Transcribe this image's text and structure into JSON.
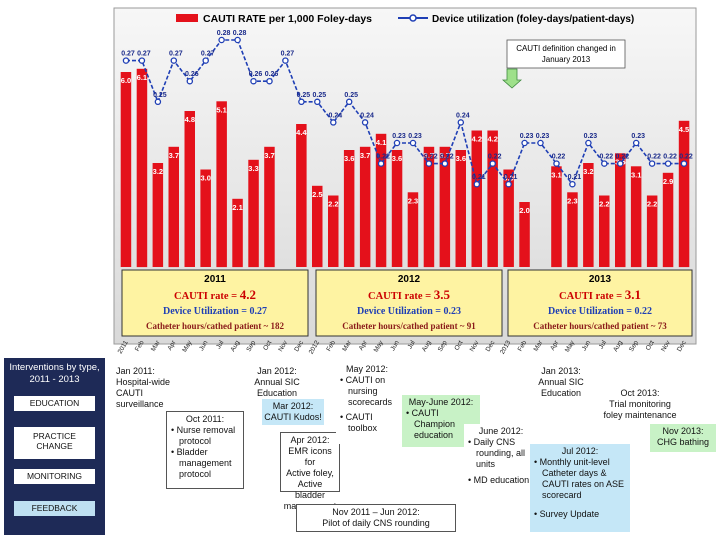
{
  "chart_data": {
    "type": "bar",
    "title_bar": "CAUTI RATE per 1,000 Foley-days",
    "title_line": "Device utilization (foley-days/patient-days)",
    "categories": [
      "2011",
      "Feb",
      "Mar",
      "Apr",
      "May",
      "Jun",
      "Jul",
      "Aug",
      "Sep",
      "Oct",
      "Nov",
      "Dec",
      "2012",
      "Feb",
      "Mar",
      "Apr",
      "May",
      "Jun",
      "Jul",
      "Aug",
      "Sep",
      "Oct",
      "Nov",
      "Dec",
      "2013",
      "Feb",
      "Mar",
      "Apr",
      "May",
      "Jun",
      "Jul",
      "Aug",
      "Sep",
      "Oct",
      "Nov",
      "Dec"
    ],
    "series": [
      {
        "name": "CAUTI RATE per 1,000 Foley-days",
        "type": "bar",
        "color": "#e4111b",
        "values": [
          6.0,
          6.1,
          3.2,
          3.7,
          4.8,
          3.0,
          5.1,
          2.1,
          3.3,
          3.7,
          null,
          4.4,
          2.5,
          2.2,
          3.6,
          3.7,
          4.1,
          3.6,
          2.3,
          3.7,
          3.7,
          3.6,
          4.2,
          4.2,
          3.0,
          2.0,
          null,
          3.1,
          2.3,
          3.2,
          2.2,
          3.5,
          3.1,
          2.2,
          2.9,
          4.5
        ],
        "labels": [
          "6.0",
          "6.1",
          "3.2",
          "3.7",
          "4.8",
          "3.0",
          "5.1",
          "2.1",
          "3.3",
          "3.7",
          "",
          "4.4",
          "2.5",
          "2.2",
          "3.6",
          "3.7",
          "4.1",
          "3.6",
          "2.3",
          "3.7",
          "3.7",
          "3.6",
          "4.2",
          "4.2",
          "3.0",
          "2.0",
          "",
          "3.1",
          "2.3",
          "3.2",
          "2.2",
          "3.5",
          "3.1",
          "2.2",
          "2.9",
          "4.5"
        ]
      },
      {
        "name": "Device utilization (foley-days/patient-days)",
        "type": "line",
        "color": "#1f3fb5",
        "values": [
          0.27,
          0.27,
          0.25,
          0.27,
          0.26,
          0.27,
          0.28,
          0.28,
          0.26,
          0.26,
          0.27,
          0.25,
          0.25,
          0.24,
          0.25,
          0.24,
          0.22,
          0.23,
          0.23,
          0.22,
          0.22,
          0.24,
          0.21,
          0.22,
          0.21,
          0.23,
          0.23,
          0.22,
          0.21,
          0.23,
          0.22,
          0.22,
          0.23,
          0.22,
          0.22,
          0.22
        ],
        "labels": [
          "0.27",
          "0.27",
          "0.25",
          "0.27",
          "0.26",
          "0.27",
          "0.28",
          "0.28",
          "0.26",
          "0.26",
          "0.27",
          "0.25",
          "0.25",
          "0.24",
          "0.25",
          "0.24",
          "0.22",
          "0.23",
          "0.23",
          "0.22",
          "0.22",
          "0.24",
          "0.21",
          "0.22",
          "0.21",
          "0.23",
          "0.23",
          "0.22",
          "0.21",
          "0.23",
          "0.22",
          "0.22",
          "0.23",
          "0.22",
          "0.22",
          "0.22"
        ]
      }
    ],
    "annotation": "CAUTI definition changed in January 2013",
    "summaries": [
      {
        "year": "2011",
        "rate_label": "CAUTI rate = ",
        "rate": "4.2",
        "util": "Device Utilization = 0.27",
        "ratio": "Catheter hours/cathed patient ~ 182"
      },
      {
        "year": "2012",
        "rate_label": "CAUTI rate = ",
        "rate": "3.5",
        "util": "Device Utilization = 0.23",
        "ratio": "Catheter hours/cathed patient ~ 91"
      },
      {
        "year": "2013",
        "rate_label": "CAUTI rate = ",
        "rate": "3.1",
        "util": "Device Utilization = 0.22",
        "ratio": "Catheter hours/cathed patient ~ 73"
      }
    ]
  },
  "interventions": {
    "title": "Interventions by type, 2011 - 2013",
    "types": [
      {
        "name": "EDUCATION",
        "color": "#ffffff"
      },
      {
        "name": "PRACTICE CHANGE",
        "color": "#ffffff"
      },
      {
        "name": "MONITORING",
        "color": "#ffffff"
      },
      {
        "name": "FEEDBACK",
        "color": "#bfe0f2"
      }
    ]
  },
  "timeline": {
    "jan2011": [
      "Jan 2011:",
      "Hospital-wide",
      "CAUTI",
      "surveillance"
    ],
    "oct2011": {
      "head": "Oct 2011:",
      "items": [
        "Nurse removal protocol",
        "Bladder management protocol"
      ]
    },
    "jan2012": [
      "Jan 2012:",
      "Annual SIC",
      "Education"
    ],
    "mar2012": [
      "Mar 2012:",
      "CAUTI Kudos!"
    ],
    "apr2012": [
      "Apr 2012:",
      "EMR icons for",
      "Active foley,",
      "Active bladder",
      "management"
    ],
    "may2012": {
      "head": "May 2012:",
      "items": [
        "CAUTI on nursing scorecards",
        "CAUTI toolbox"
      ]
    },
    "mayjun2012": {
      "head": "May-June 2012:",
      "items": [
        "CAUTI Champion education"
      ]
    },
    "jun2012": {
      "head": "June 2012:",
      "items": [
        "Daily CNS rounding, all units",
        "MD education"
      ]
    },
    "nov2011": [
      "Nov 2011 – Jun 2012:",
      "Pilot of daily CNS rounding"
    ],
    "jan2013": [
      "Jan 2013:",
      "Annual SIC",
      "Education"
    ],
    "jul2012": {
      "head": "Jul 2012:",
      "items": [
        "Monthly unit-level Catheter days & CAUTI rates on ASE scorecard",
        "Survey Update"
      ]
    },
    "oct2013": [
      "Oct 2013:",
      "Trial monitoring",
      "foley maintenance"
    ],
    "nov2013": [
      "Nov 2013:",
      "CHG bathing"
    ]
  }
}
